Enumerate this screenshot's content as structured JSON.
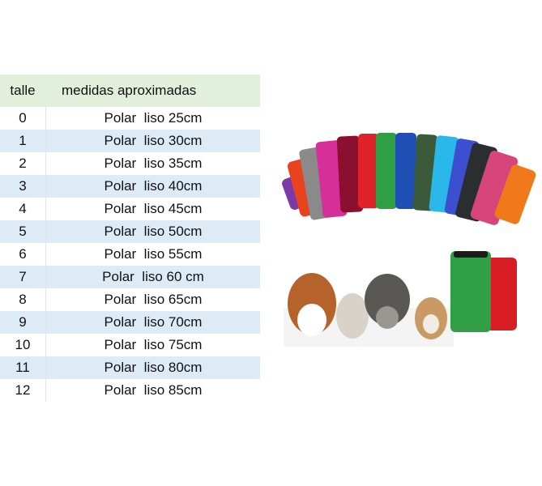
{
  "table": {
    "header": [
      "talle",
      "medidas aproximadas"
    ],
    "rows": [
      [
        "0",
        "Polar  liso 25cm"
      ],
      [
        "1",
        "Polar  liso 30cm"
      ],
      [
        "2",
        "Polar  liso 35cm"
      ],
      [
        "3",
        "Polar  liso 40cm"
      ],
      [
        "4",
        "Polar  liso 45cm"
      ],
      [
        "5",
        "Polar  liso 50cm"
      ],
      [
        "6",
        "Polar  liso 55cm"
      ],
      [
        "7",
        "Polar  liso 60 cm"
      ],
      [
        "8",
        "Polar  liso 65cm"
      ],
      [
        "9",
        "Polar  liso 70cm"
      ],
      [
        "10",
        "Polar  liso 75cm"
      ],
      [
        "11",
        "Polar  liso 80cm"
      ],
      [
        "12",
        "Polar  liso 85cm"
      ]
    ]
  }
}
